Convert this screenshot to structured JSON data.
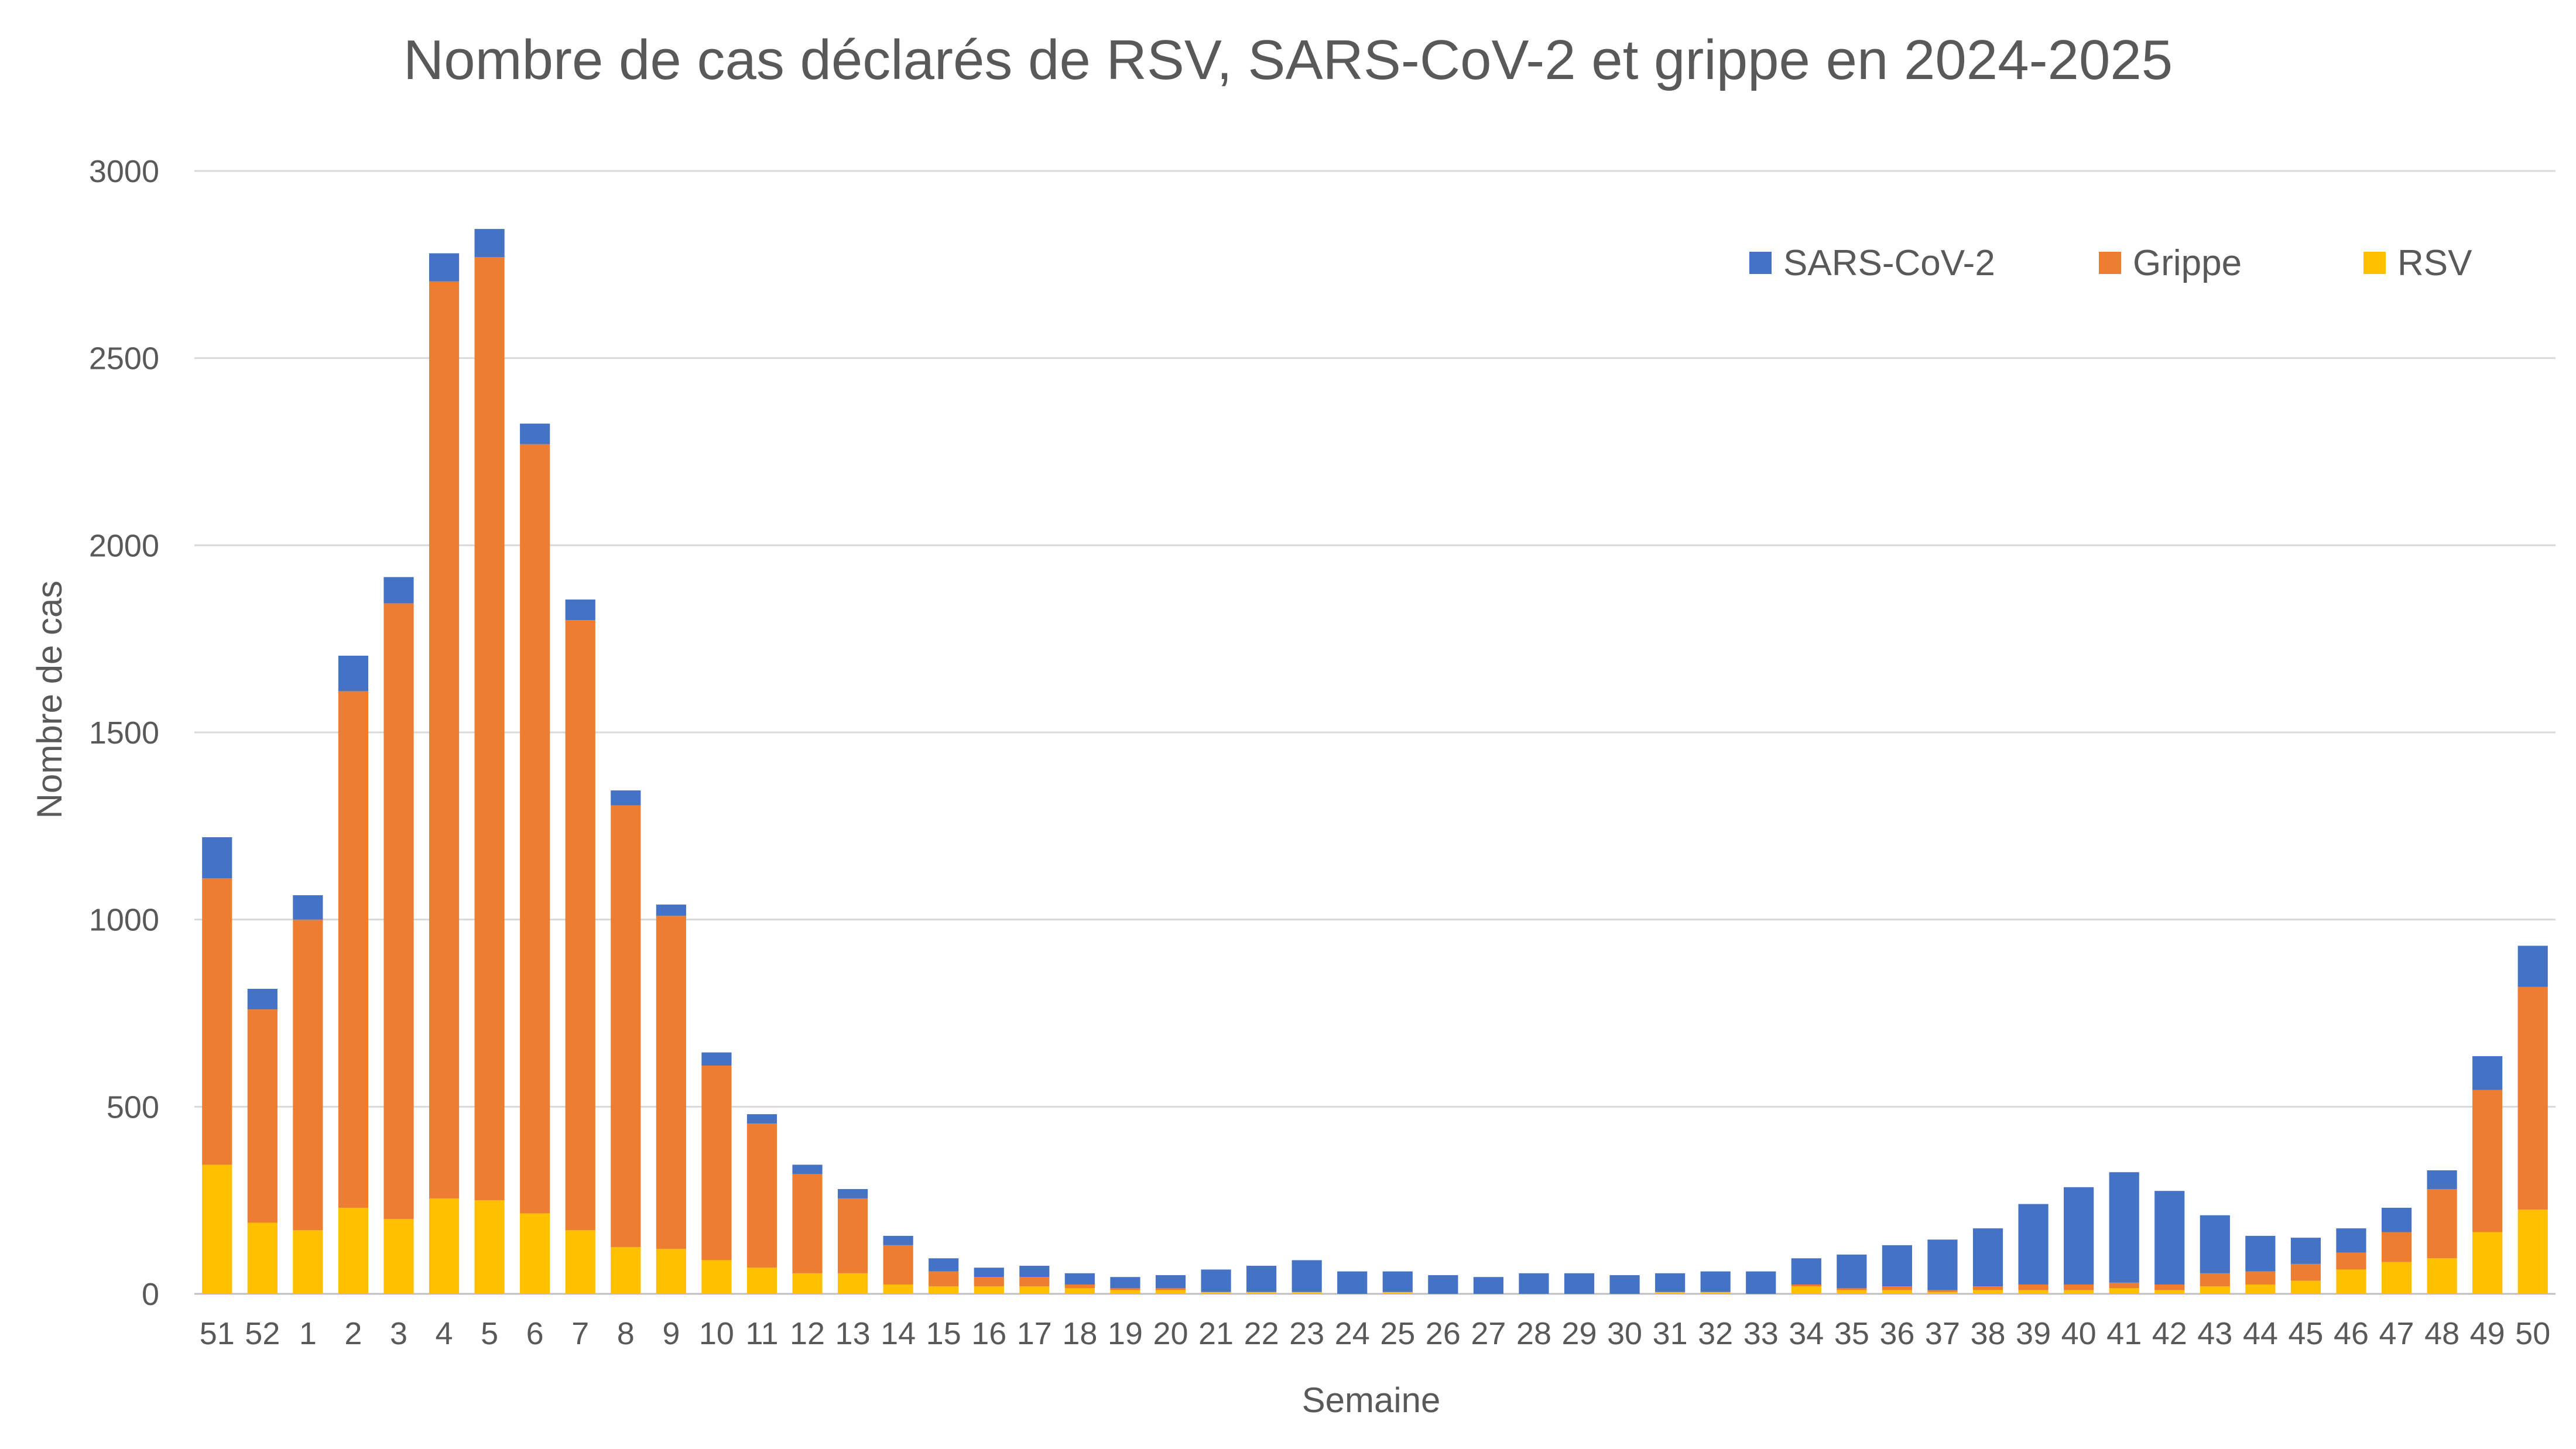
{
  "chart_data": {
    "type": "bar",
    "stacked": true,
    "title": "Nombre de cas déclarés de RSV, SARS-CoV-2 et grippe en 2024-2025",
    "xlabel": "Semaine",
    "ylabel": "Nombre de cas",
    "ylim": [
      0,
      3000
    ],
    "yticks": [
      0,
      500,
      1000,
      1500,
      2000,
      2500,
      3000
    ],
    "grid": true,
    "legend_position": "top-right",
    "categories": [
      "51",
      "52",
      "1",
      "2",
      "3",
      "4",
      "5",
      "6",
      "7",
      "8",
      "9",
      "10",
      "11",
      "12",
      "13",
      "14",
      "15",
      "16",
      "17",
      "18",
      "19",
      "20",
      "21",
      "22",
      "23",
      "24",
      "25",
      "26",
      "27",
      "28",
      "29",
      "30",
      "31",
      "32",
      "33",
      "34",
      "35",
      "36",
      "37",
      "38",
      "39",
      "40",
      "41",
      "42",
      "43",
      "44",
      "45",
      "46",
      "47",
      "48",
      "49",
      "50"
    ],
    "series": [
      {
        "name": "RSV",
        "color": "#FFC000",
        "values": [
          345,
          190,
          170,
          230,
          200,
          255,
          250,
          215,
          170,
          125,
          120,
          90,
          70,
          55,
          55,
          25,
          20,
          20,
          20,
          15,
          10,
          10,
          5,
          5,
          5,
          0,
          5,
          0,
          0,
          0,
          0,
          0,
          5,
          5,
          0,
          20,
          10,
          10,
          5,
          10,
          10,
          10,
          15,
          10,
          20,
          25,
          35,
          65,
          85,
          95,
          165,
          225
        ]
      },
      {
        "name": "Grippe",
        "color": "#ED7D31",
        "values": [
          765,
          570,
          830,
          1380,
          1645,
          2450,
          2520,
          2055,
          1630,
          1180,
          890,
          520,
          385,
          265,
          200,
          105,
          40,
          25,
          25,
          10,
          5,
          5,
          0,
          0,
          0,
          0,
          0,
          0,
          0,
          0,
          0,
          0,
          0,
          0,
          0,
          5,
          5,
          10,
          5,
          10,
          15,
          15,
          15,
          15,
          35,
          35,
          45,
          45,
          80,
          185,
          380,
          595
        ]
      },
      {
        "name": "SARS-CoV-2",
        "color": "#4472C4",
        "values": [
          110,
          55,
          65,
          95,
          70,
          75,
          75,
          55,
          55,
          40,
          30,
          35,
          25,
          25,
          25,
          25,
          35,
          25,
          30,
          30,
          30,
          35,
          60,
          70,
          85,
          60,
          55,
          50,
          45,
          55,
          55,
          50,
          50,
          55,
          60,
          70,
          90,
          110,
          135,
          155,
          215,
          260,
          295,
          250,
          155,
          95,
          70,
          65,
          65,
          50,
          90,
          110
        ]
      }
    ]
  }
}
